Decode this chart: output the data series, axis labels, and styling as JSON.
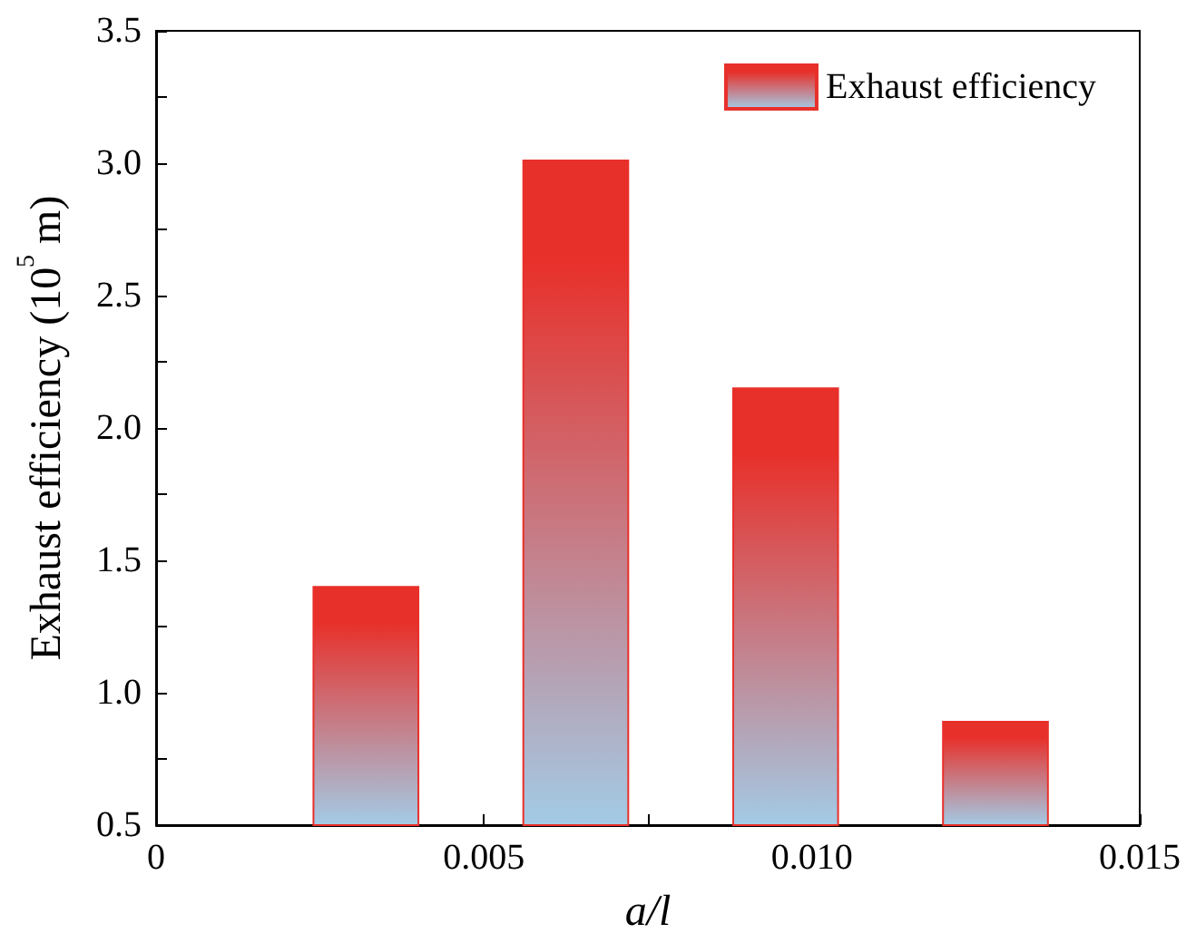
{
  "chart_data": {
    "type": "bar",
    "xlabel": "a/l",
    "ylabel": "Exhaust efficiency (10$^{5}$ m)",
    "x": [
      0.0032,
      0.0064,
      0.0096,
      0.0128
    ],
    "series": [
      {
        "name": "Exhaust efficiency",
        "color": "#e8302a",
        "values": [
          1.4,
          3.01,
          2.15,
          0.89
        ]
      }
    ],
    "xlim": [
      0,
      0.015
    ],
    "xticks": [
      0,
      {
        "value": 0.0025,
        "label": null
      },
      0.005,
      {
        "value": 0.0075,
        "label": null
      },
      {
        "value": 0.01,
        "label": "0.010"
      },
      {
        "value": 0.0125,
        "label": null
      },
      0.015
    ],
    "ylim": [
      0.5,
      3.5
    ],
    "yticks": [
      0.5,
      {
        "value": 0.75,
        "label": null
      },
      {
        "value": 1,
        "label": "1.0"
      },
      {
        "value": 1.25,
        "label": null
      },
      1.5,
      {
        "value": 1.75,
        "label": null
      },
      {
        "value": 2,
        "label": "2.0"
      },
      {
        "value": 2.25,
        "label": null
      },
      2.5,
      {
        "value": 2.75,
        "label": null
      },
      {
        "value": 3,
        "label": "3.0"
      },
      {
        "value": 3.25,
        "label": null
      },
      3.5
    ],
    "grid": false,
    "legend": "top right"
  }
}
